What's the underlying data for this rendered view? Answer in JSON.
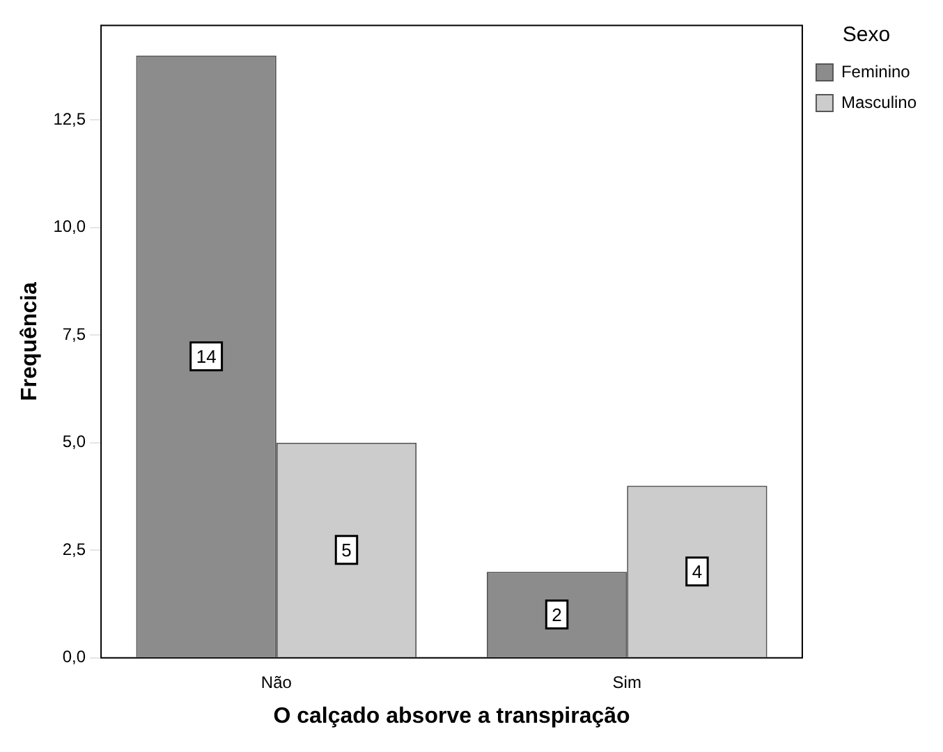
{
  "chart_data": {
    "type": "bar",
    "xlabel": "O calçado absorve a transpiração",
    "ylabel": "Frequência",
    "legend_title": "Sexo",
    "categories": [
      "Não",
      "Sim"
    ],
    "series": [
      {
        "name": "Feminino",
        "color": "#8c8c8c",
        "values": [
          14,
          2
        ]
      },
      {
        "name": "Masculino",
        "color": "#cccccc",
        "values": [
          5,
          4
        ]
      }
    ],
    "ylim": [
      0,
      14.7
    ],
    "yticks": [
      {
        "value": 0,
        "label": "0,0"
      },
      {
        "value": 2.5,
        "label": "2,5"
      },
      {
        "value": 5,
        "label": "5,0"
      },
      {
        "value": 7.5,
        "label": "7,5"
      },
      {
        "value": 10,
        "label": "10,0"
      },
      {
        "value": 12.5,
        "label": "12,5"
      }
    ],
    "grid": false,
    "legend": "top right",
    "data_labels": true
  }
}
